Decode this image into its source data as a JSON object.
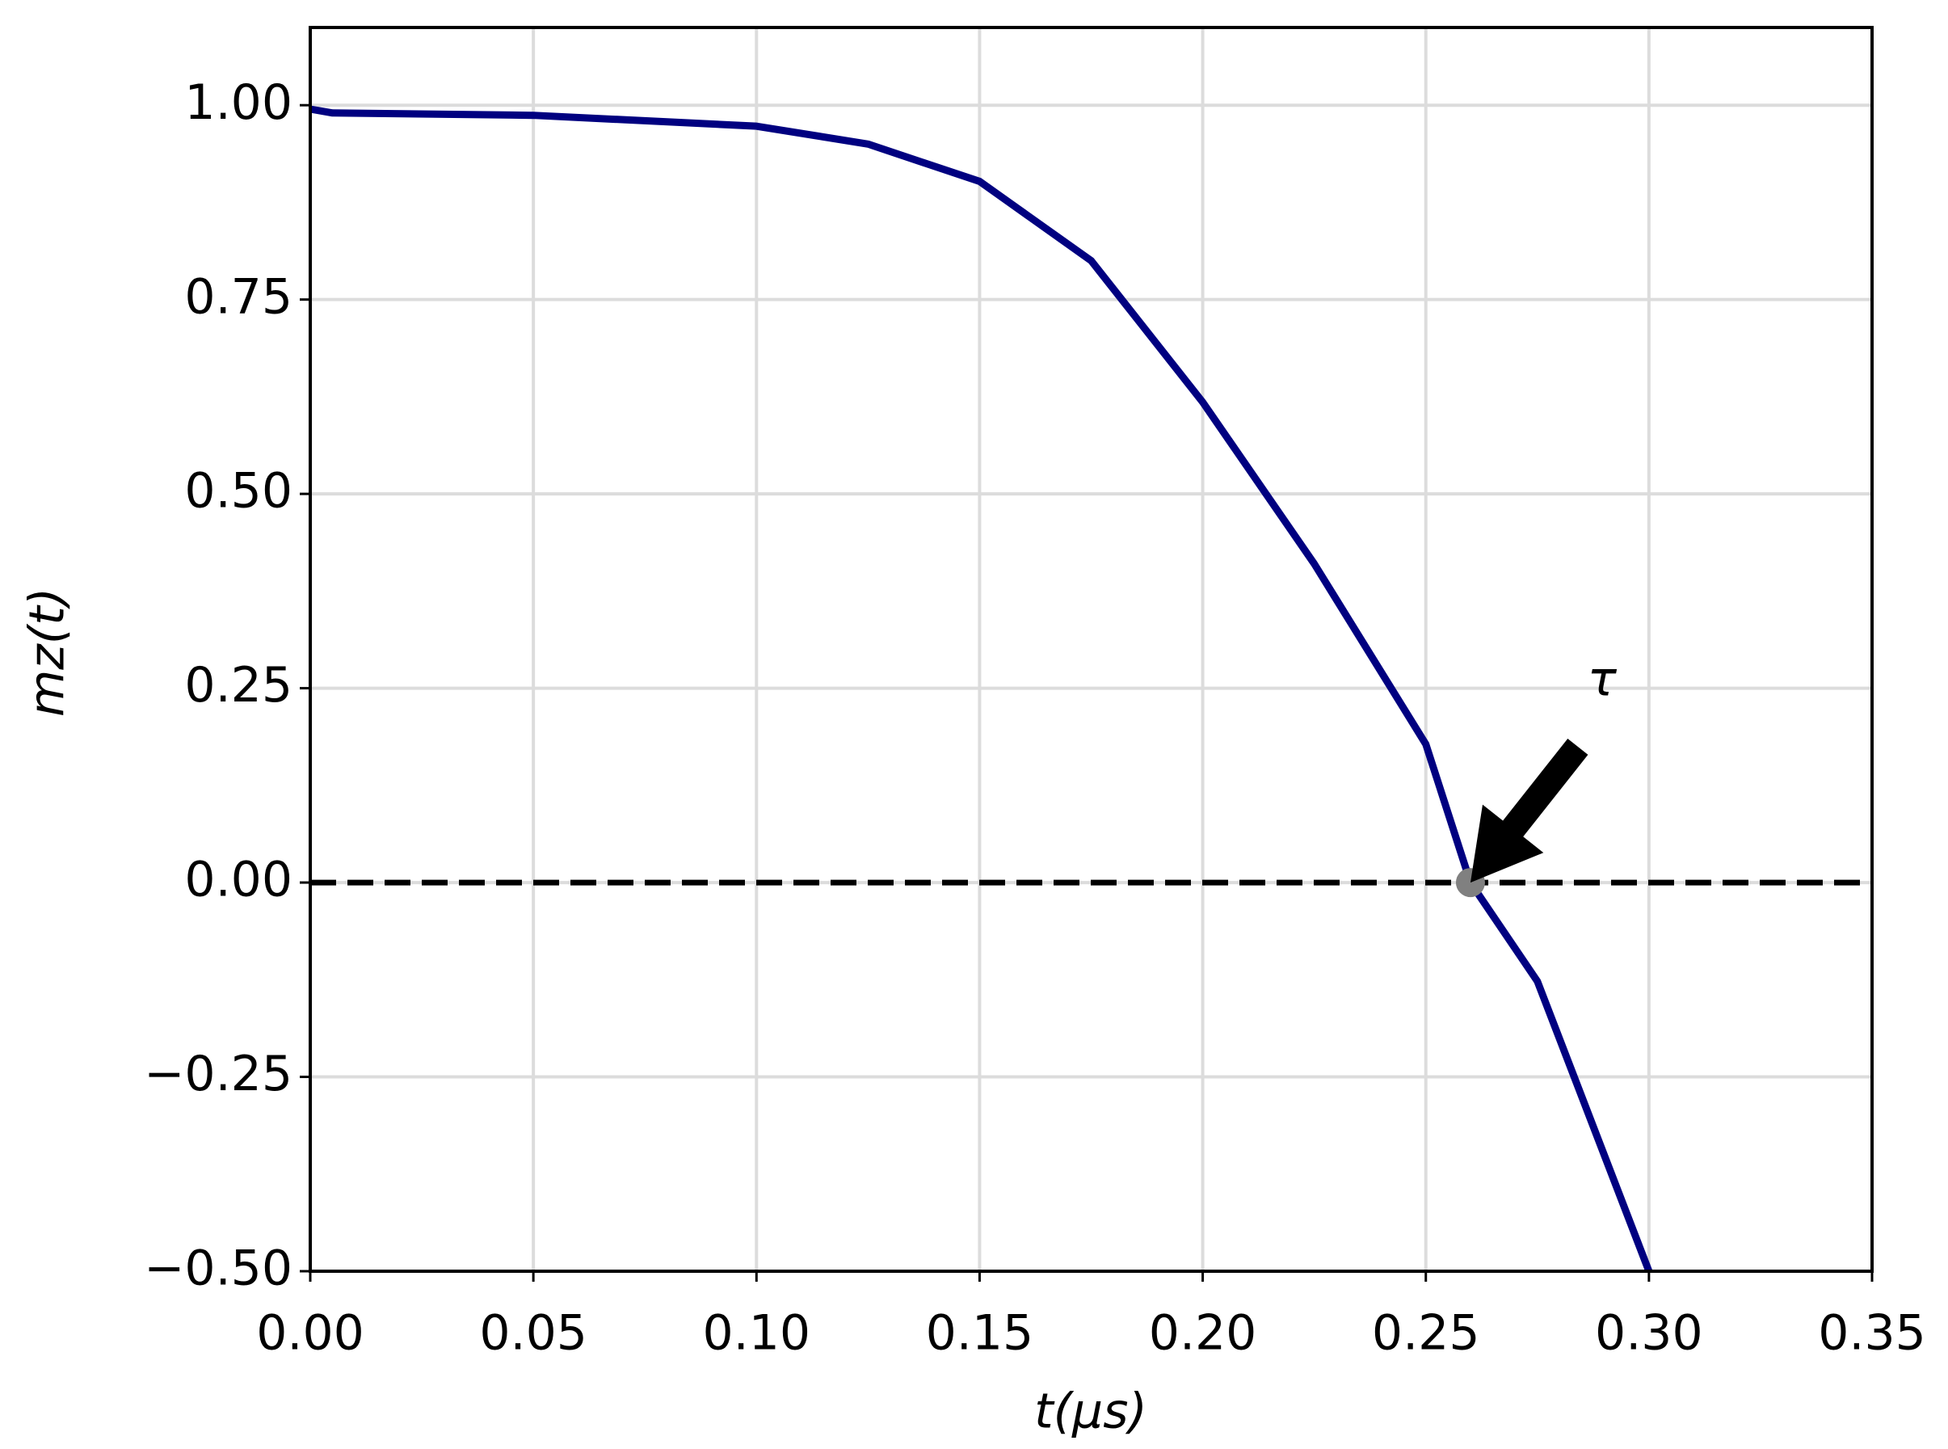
{
  "chart_data": {
    "type": "line",
    "xlabel": "t(μs)",
    "ylabel": "mz(t)",
    "x": [
      0,
      0.005,
      0.05,
      0.1,
      0.125,
      0.15,
      0.175,
      0.2,
      0.225,
      0.25,
      0.26,
      0.275,
      0.3
    ],
    "series": [
      {
        "color": "#000080",
        "values": [
          0.995,
          0.99,
          0.987,
          0.973,
          0.95,
          0.902,
          0.8,
          0.618,
          0.41,
          0.178,
          0.0,
          -0.127,
          -0.5
        ]
      }
    ],
    "xlim": [
      0,
      0.35
    ],
    "xticks": [
      {
        "value": 0,
        "label": "0.00"
      },
      {
        "value": 0.05,
        "label": "0.05"
      },
      {
        "value": 0.1,
        "label": "0.10"
      },
      {
        "value": 0.15,
        "label": "0.15"
      },
      {
        "value": 0.2,
        "label": "0.20"
      },
      {
        "value": 0.25,
        "label": "0.25"
      },
      {
        "value": 0.3,
        "label": "0.30"
      },
      {
        "value": 0.35,
        "label": "0.35"
      }
    ],
    "ylim": [
      -0.5,
      1.1
    ],
    "yticks": [
      {
        "value": -0.5,
        "label": "−0.50"
      },
      {
        "value": -0.25,
        "label": "−0.25"
      },
      {
        "value": 0,
        "label": "0.00"
      },
      {
        "value": 0.25,
        "label": "0.25"
      },
      {
        "value": 0.5,
        "label": "0.50"
      },
      {
        "value": 0.75,
        "label": "0.75"
      },
      {
        "value": 1,
        "label": "1.00"
      }
    ],
    "grid": true,
    "hline": {
      "y": 0,
      "color": "#000000"
    },
    "marker": {
      "x": 0.26,
      "y": 0,
      "color": "#808080"
    },
    "annotation": {
      "text": "τ",
      "x": 0.2895,
      "y": 0.258
    }
  }
}
